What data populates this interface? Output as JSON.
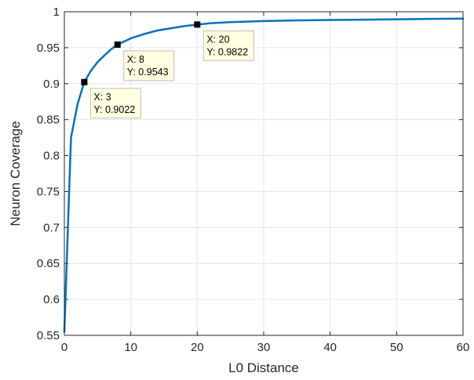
{
  "chart_data": {
    "type": "line",
    "xlabel": "L0 Distance",
    "ylabel": "Neuron Coverage",
    "xlim": [
      0,
      60
    ],
    "ylim": [
      0.55,
      1
    ],
    "grid": true,
    "x_ticks": [
      "0",
      "10",
      "20",
      "30",
      "40",
      "50",
      "60"
    ],
    "y_ticks": [
      "0.55",
      "0.6",
      "0.65",
      "0.7",
      "0.75",
      "0.8",
      "0.85",
      "0.9",
      "0.95",
      "1"
    ],
    "series": [
      {
        "color": "#0072BD",
        "x": [
          0,
          1,
          2,
          3,
          4,
          5,
          6,
          7,
          8,
          10,
          12,
          14,
          16,
          18,
          20,
          22,
          25,
          30,
          35,
          40,
          45,
          50,
          55,
          60
        ],
        "y": [
          0.555,
          0.825,
          0.872,
          0.9022,
          0.918,
          0.93,
          0.939,
          0.9475,
          0.9543,
          0.963,
          0.969,
          0.974,
          0.977,
          0.98,
          0.9822,
          0.984,
          0.9855,
          0.987,
          0.988,
          0.9885,
          0.989,
          0.9895,
          0.99,
          0.9905
        ]
      }
    ],
    "datatips": [
      {
        "x": 3,
        "y": 0.9022,
        "x_text": "X: 3",
        "y_text": "Y: 0.9022"
      },
      {
        "x": 8,
        "y": 0.9543,
        "x_text": "X: 8",
        "y_text": "Y: 0.9543"
      },
      {
        "x": 20,
        "y": 0.9822,
        "x_text": "X: 20",
        "y_text": "Y: 0.9822"
      }
    ],
    "colors": {
      "line": "#0072BD",
      "grid": "#e6e6e6",
      "axes": "#262626",
      "datatip_bg": "#ffffe1",
      "datatip_border": "#bdbdbd"
    }
  }
}
